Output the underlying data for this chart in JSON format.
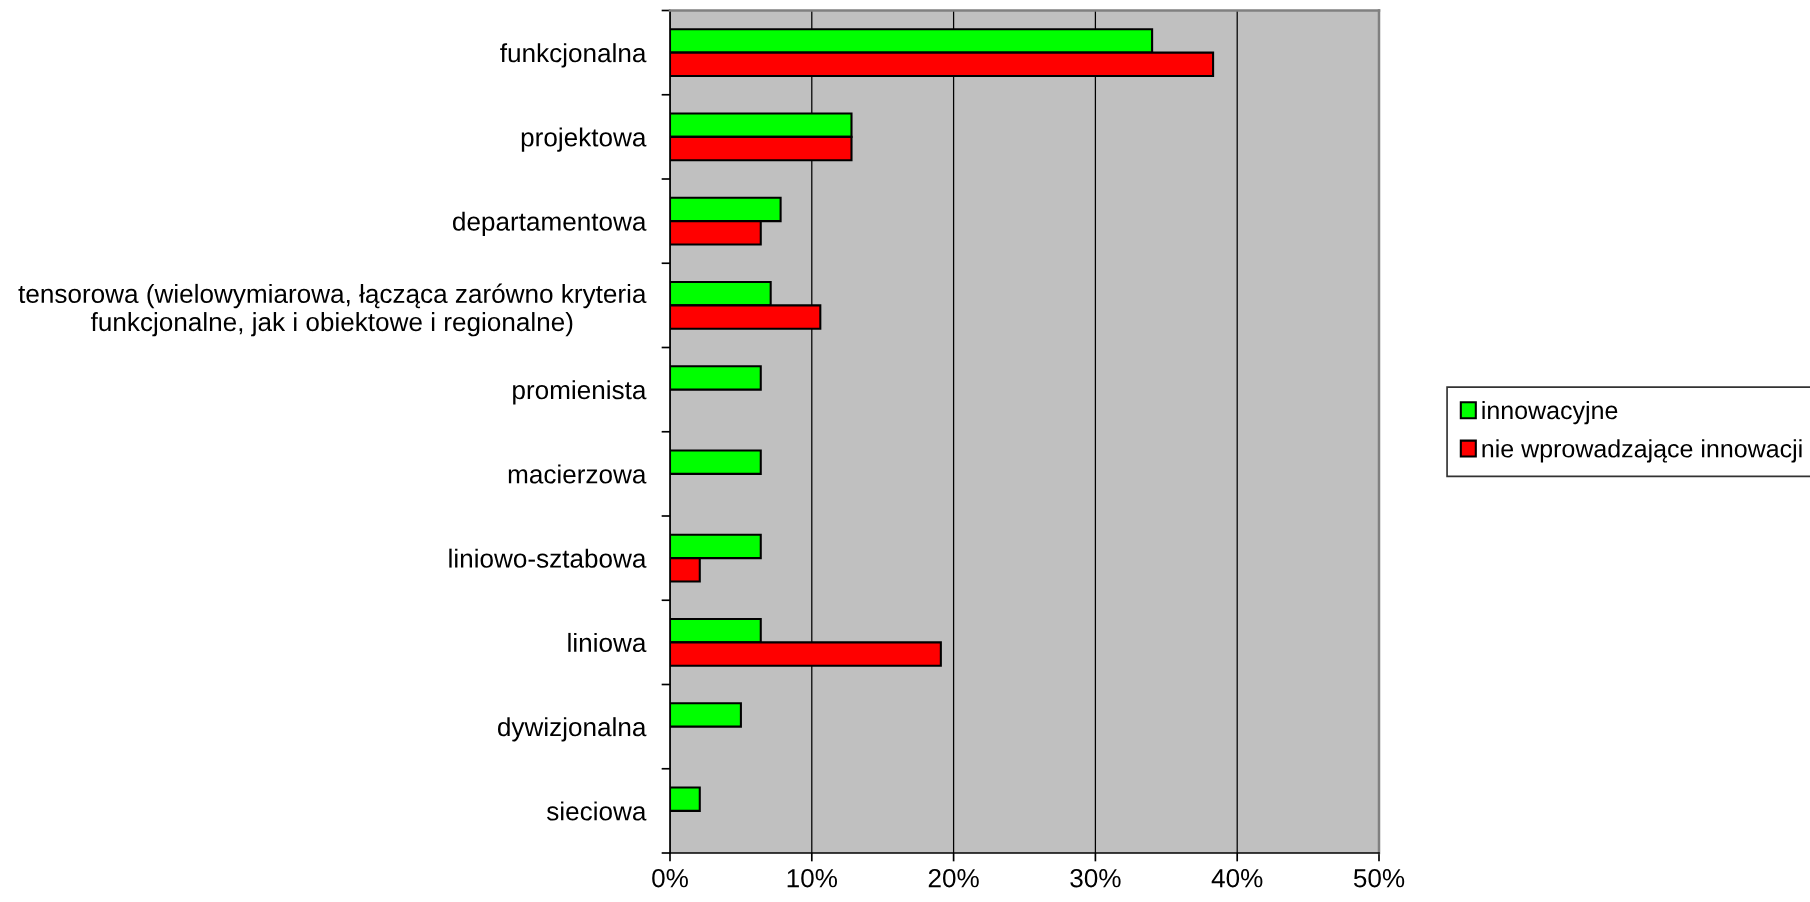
{
  "chart_data": {
    "type": "bar",
    "orientation": "horizontal",
    "categories": [
      "funkcjonalna",
      "projektowa",
      "departamentowa",
      "tensorowa (wielowymiarowa, łącząca zarówno kryteria\nfunkcjonalne, jak i obiektowe i regionalne)",
      "promienista",
      "macierzowa",
      "liniowo-sztabowa",
      "liniowa",
      "dywizjonalna",
      "sieciowa"
    ],
    "series": [
      {
        "name": "innowacyjne",
        "color": "#00ff00",
        "values": [
          34.0,
          12.8,
          7.8,
          7.1,
          6.4,
          6.4,
          6.4,
          6.4,
          5.0,
          2.1
        ]
      },
      {
        "name": "nie wprowadzające innowacji",
        "color": "#ff0000",
        "values": [
          38.3,
          12.8,
          6.4,
          10.6,
          null,
          null,
          2.1,
          19.1,
          null,
          null
        ]
      }
    ],
    "xlim": [
      0,
      50
    ],
    "xticks": [
      {
        "value": 0,
        "label": "0%"
      },
      {
        "value": 10,
        "label": "10%"
      },
      {
        "value": 20,
        "label": "20%"
      },
      {
        "value": 30,
        "label": "30%"
      },
      {
        "value": 40,
        "label": "40%"
      },
      {
        "value": 50,
        "label": "50%"
      }
    ],
    "grid": "x",
    "legend": "right"
  }
}
